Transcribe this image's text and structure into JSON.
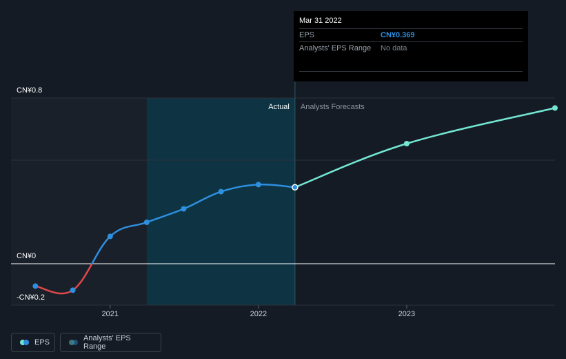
{
  "chart_data": {
    "type": "line",
    "y_axis_labels": [
      "CN¥0.8",
      "CN¥0",
      "-CN¥0.2"
    ],
    "x_tick_labels": [
      "2021",
      "2022",
      "2023"
    ],
    "region_labels": {
      "actual": "Actual",
      "forecast": "Analysts Forecasts"
    },
    "ylim": [
      -0.2,
      0.8
    ],
    "grid": true,
    "series": [
      {
        "name": "EPS",
        "kind": "actual",
        "points": [
          {
            "x": "2020-06-30",
            "y": -0.108
          },
          {
            "x": "2020-09-30",
            "y": -0.128
          },
          {
            "x": "2020-12-31",
            "y": 0.132
          },
          {
            "x": "2021-03-31",
            "y": 0.2
          },
          {
            "x": "2021-06-30",
            "y": 0.265
          },
          {
            "x": "2021-09-30",
            "y": 0.348
          },
          {
            "x": "2021-12-31",
            "y": 0.382
          },
          {
            "x": "2022-03-31",
            "y": 0.369
          }
        ]
      },
      {
        "name": "EPS",
        "kind": "forecast",
        "points": [
          {
            "x": "2022-03-31",
            "y": 0.369
          },
          {
            "x": "2022-12-31",
            "y": 0.58
          },
          {
            "x": "2023-12-31",
            "y": 0.752
          }
        ]
      }
    ],
    "colors": {
      "actual": "#2d8fe0",
      "negative": "#e0484b",
      "forecast": "#73e7d4",
      "zero_line": "#ffffff",
      "actual_shade": "#0e3443",
      "past_shade": "#1a2029"
    }
  },
  "tooltip": {
    "date": "Mar 31 2022",
    "eps_label": "EPS",
    "eps_value": "CN¥0.369",
    "range_label": "Analysts' EPS Range",
    "range_value": "No data"
  },
  "legend": {
    "eps_label": "EPS",
    "range_label": "Analysts' EPS Range",
    "eps_colors": [
      "#73e7d4",
      "#2d8fe0"
    ],
    "range_colors": [
      "#73e7d4",
      "#2d8fe0"
    ]
  }
}
